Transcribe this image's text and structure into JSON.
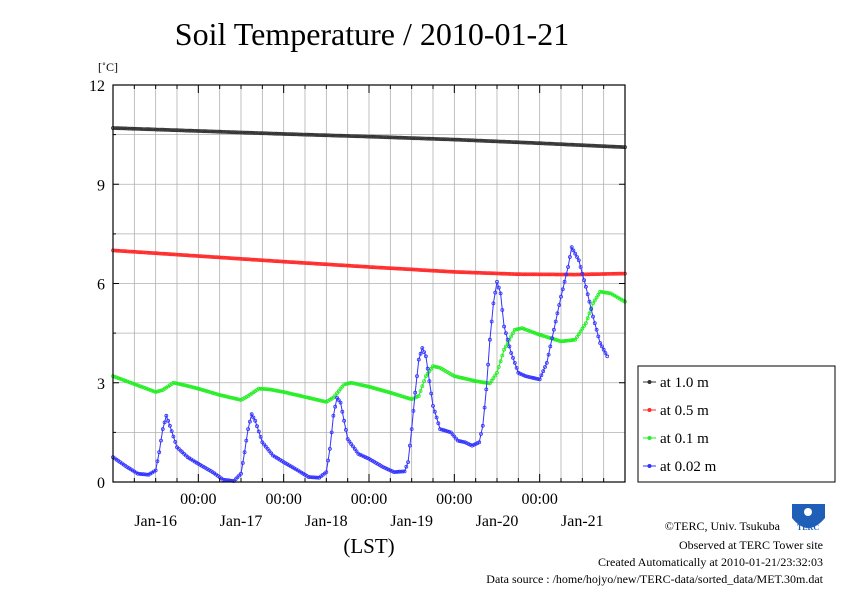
{
  "chart_data": {
    "type": "line",
    "title": "Soil Temperature / 2010-01-21",
    "unit_label": "[˚C]",
    "xlabel": "(LST)",
    "ylim": [
      0,
      12
    ],
    "y_ticks": [
      "0",
      "3",
      "6",
      "9",
      "12"
    ],
    "x_time_ticks": [
      "00:00",
      "00:00",
      "00:00",
      "00:00",
      "00:00"
    ],
    "x_date_labels": [
      "Jan-16",
      "Jan-17",
      "Jan-18",
      "Jan-19",
      "Jan-20",
      "Jan-21"
    ],
    "x_domain_hours": [
      0,
      144
    ],
    "x_time_tick_hours": [
      24,
      48,
      72,
      96,
      120
    ],
    "x_date_label_hours": [
      12,
      36,
      60,
      84,
      108,
      132
    ],
    "grid": true,
    "legend_position": "right",
    "series": [
      {
        "name": "at 1.0 m",
        "color": "#333333",
        "points": [
          [
            0,
            10.7
          ],
          [
            24,
            10.61
          ],
          [
            48,
            10.52
          ],
          [
            72,
            10.44
          ],
          [
            96,
            10.35
          ],
          [
            120,
            10.24
          ],
          [
            144,
            10.12
          ]
        ]
      },
      {
        "name": "at 0.5 m",
        "color": "#ff2a2a",
        "points": [
          [
            0,
            7.0
          ],
          [
            24,
            6.83
          ],
          [
            48,
            6.66
          ],
          [
            72,
            6.5
          ],
          [
            96,
            6.35
          ],
          [
            114,
            6.28
          ],
          [
            130,
            6.27
          ],
          [
            144,
            6.3
          ]
        ]
      },
      {
        "name": "at 0.1 m",
        "color": "#22ee22",
        "points": [
          [
            0,
            3.2
          ],
          [
            5,
            3.0
          ],
          [
            12,
            2.72
          ],
          [
            14,
            2.78
          ],
          [
            17,
            3.0
          ],
          [
            20,
            2.93
          ],
          [
            24,
            2.82
          ],
          [
            30,
            2.63
          ],
          [
            36,
            2.48
          ],
          [
            38,
            2.6
          ],
          [
            41,
            2.82
          ],
          [
            44,
            2.8
          ],
          [
            48,
            2.72
          ],
          [
            54,
            2.57
          ],
          [
            60,
            2.42
          ],
          [
            62,
            2.55
          ],
          [
            65,
            2.95
          ],
          [
            67,
            3.0
          ],
          [
            72,
            2.88
          ],
          [
            78,
            2.7
          ],
          [
            84,
            2.5
          ],
          [
            86,
            2.6
          ],
          [
            88,
            3.2
          ],
          [
            90,
            3.5
          ],
          [
            92,
            3.45
          ],
          [
            96,
            3.2
          ],
          [
            102,
            3.05
          ],
          [
            106,
            2.98
          ],
          [
            108,
            3.3
          ],
          [
            110,
            4.0
          ],
          [
            113,
            4.6
          ],
          [
            115,
            4.65
          ],
          [
            120,
            4.45
          ],
          [
            126,
            4.25
          ],
          [
            130,
            4.3
          ],
          [
            133,
            4.8
          ],
          [
            135,
            5.4
          ],
          [
            137,
            5.75
          ],
          [
            140,
            5.7
          ],
          [
            144,
            5.45
          ]
        ]
      },
      {
        "name": "at 0.02 m",
        "color": "#3333ff",
        "points": [
          [
            0,
            0.75
          ],
          [
            4,
            0.45
          ],
          [
            7,
            0.25
          ],
          [
            10,
            0.22
          ],
          [
            12,
            0.35
          ],
          [
            13,
            0.9
          ],
          [
            14,
            1.6
          ],
          [
            15,
            2.0
          ],
          [
            16,
            1.7
          ],
          [
            18,
            1.05
          ],
          [
            21,
            0.75
          ],
          [
            24,
            0.55
          ],
          [
            28,
            0.3
          ],
          [
            31,
            0.07
          ],
          [
            34,
            0.03
          ],
          [
            36,
            0.25
          ],
          [
            37,
            0.9
          ],
          [
            38,
            1.6
          ],
          [
            39,
            2.05
          ],
          [
            40,
            1.85
          ],
          [
            42,
            1.2
          ],
          [
            45,
            0.8
          ],
          [
            48,
            0.6
          ],
          [
            52,
            0.35
          ],
          [
            55,
            0.15
          ],
          [
            58,
            0.13
          ],
          [
            60,
            0.3
          ],
          [
            61,
            1.0
          ],
          [
            62,
            2.0
          ],
          [
            63,
            2.55
          ],
          [
            64,
            2.4
          ],
          [
            66,
            1.3
          ],
          [
            69,
            0.85
          ],
          [
            72,
            0.7
          ],
          [
            76,
            0.45
          ],
          [
            79,
            0.3
          ],
          [
            82,
            0.32
          ],
          [
            83,
            0.6
          ],
          [
            84,
            1.6
          ],
          [
            85,
            2.7
          ],
          [
            86,
            3.7
          ],
          [
            87,
            4.05
          ],
          [
            88,
            3.8
          ],
          [
            90,
            2.3
          ],
          [
            92,
            1.6
          ],
          [
            95,
            1.5
          ],
          [
            97,
            1.25
          ],
          [
            99,
            1.2
          ],
          [
            101,
            1.1
          ],
          [
            103,
            1.2
          ],
          [
            104,
            1.7
          ],
          [
            105,
            2.8
          ],
          [
            106,
            4.3
          ],
          [
            107,
            5.4
          ],
          [
            108,
            6.05
          ],
          [
            109,
            5.7
          ],
          [
            110,
            4.7
          ],
          [
            112,
            3.9
          ],
          [
            114,
            3.3
          ],
          [
            116,
            3.2
          ],
          [
            118,
            3.15
          ],
          [
            120,
            3.1
          ],
          [
            122,
            3.6
          ],
          [
            124,
            4.6
          ],
          [
            126,
            5.6
          ],
          [
            128,
            6.5
          ],
          [
            129,
            7.1
          ],
          [
            131,
            6.7
          ],
          [
            133,
            5.9
          ],
          [
            135,
            5.0
          ],
          [
            137,
            4.2
          ],
          [
            139,
            3.8
          ]
        ]
      }
    ]
  },
  "credits": {
    "copyright": "©TERC, Univ. Tsukuba",
    "observed": "Observed at TERC Tower site",
    "created": "Created Automatically at 2010-01-21/23:32:03",
    "source": "Data source : /home/hojyo/new/TERC-data/sorted_data/MET.30m.dat",
    "logo_text": "TERC"
  }
}
